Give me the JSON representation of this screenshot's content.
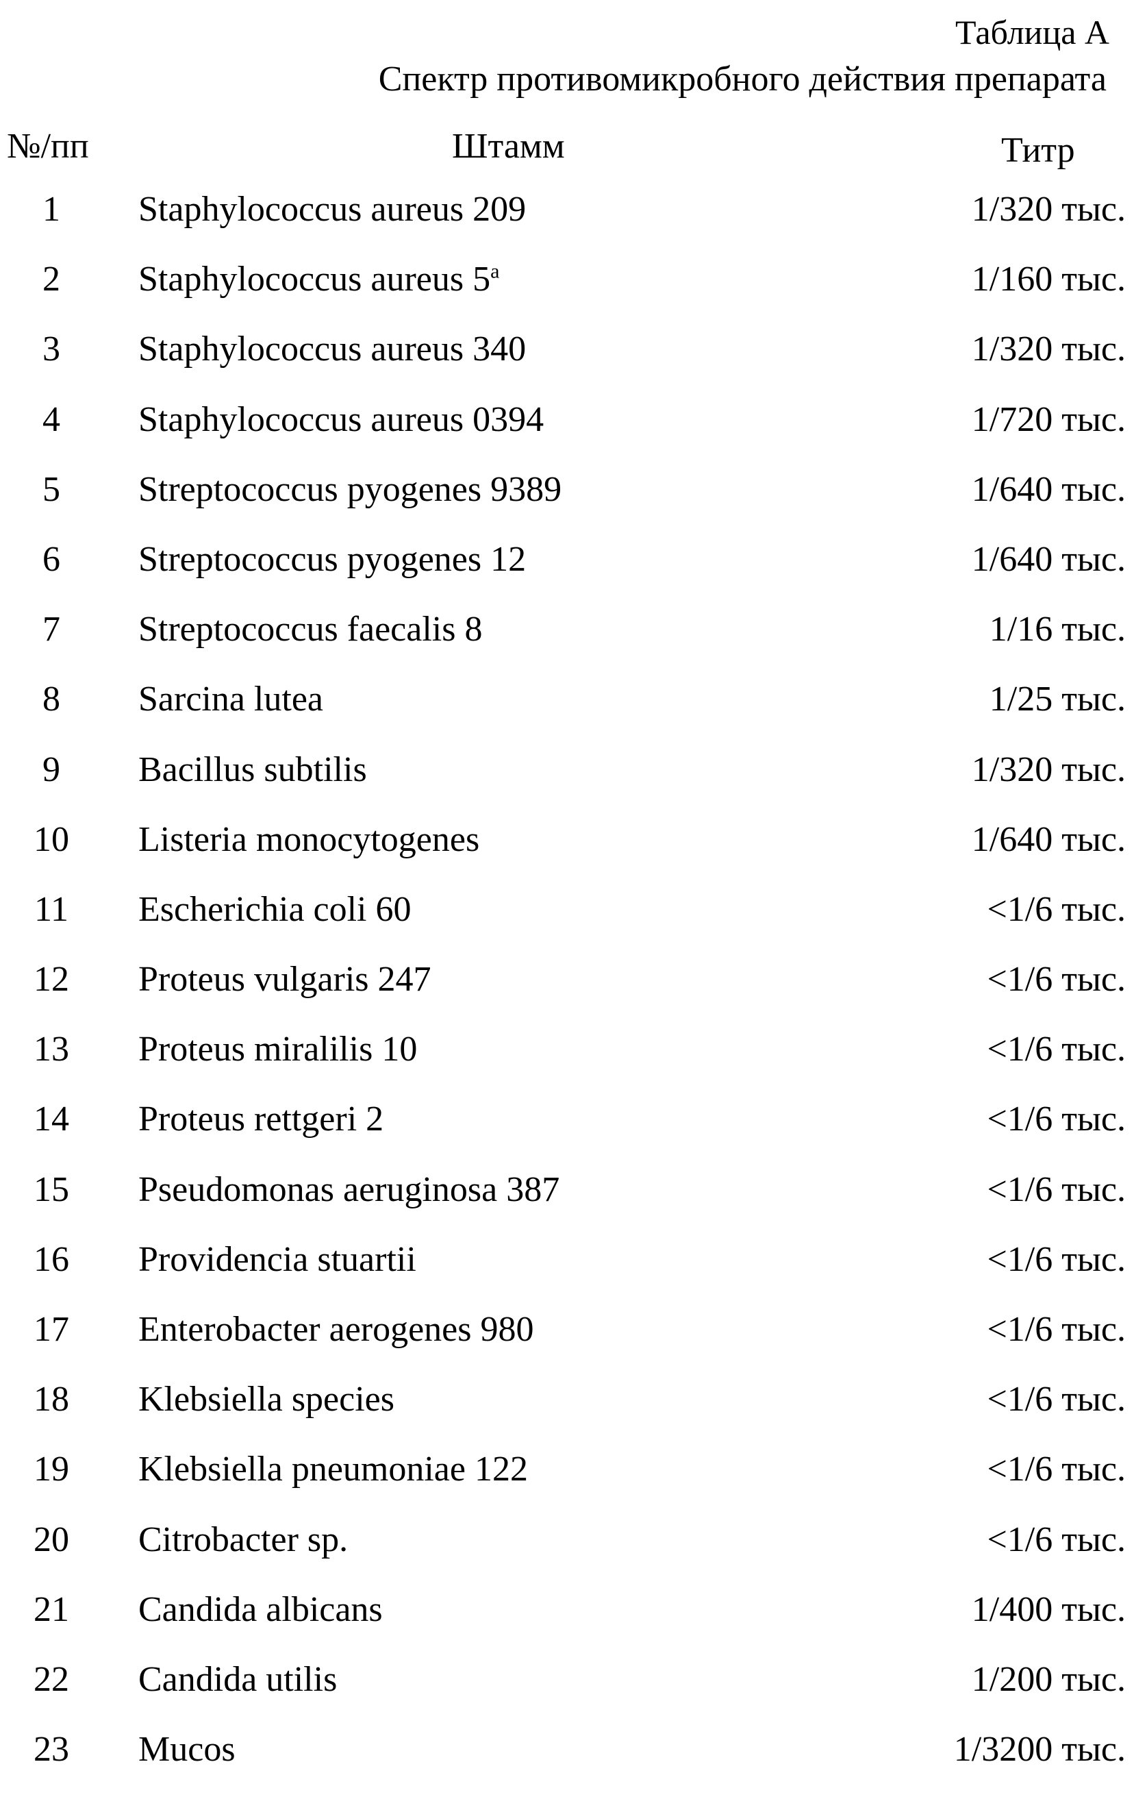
{
  "caption": "Таблица А",
  "title": "Спектр противомикробного действия препарата",
  "headers": {
    "num": "№/пп",
    "strain": "Штамм",
    "titer": "Титр"
  },
  "rows": [
    {
      "num": "1",
      "strain": "Staphylococcus aureus 209",
      "titer": "1/320 тыс."
    },
    {
      "num": "2",
      "strain": "Staphylococcus aureus 5",
      "sup": "a",
      "titer": "1/160 тыс."
    },
    {
      "num": "3",
      "strain": "Staphylococcus aureus 340",
      "titer": "1/320 тыс."
    },
    {
      "num": "4",
      "strain": "Staphylococcus aureus 0394",
      "titer": "1/720 тыс."
    },
    {
      "num": "5",
      "strain": "Streptococcus pyogenes 9389",
      "titer": "1/640 тыс."
    },
    {
      "num": "6",
      "strain": "Streptococcus pyogenes 12",
      "titer": "1/640 тыс."
    },
    {
      "num": "7",
      "strain": "Streptococcus faecalis 8",
      "titer": "1/16 тыс."
    },
    {
      "num": "8",
      "strain": "Sarcina lutea",
      "titer": "1/25 тыс."
    },
    {
      "num": "9",
      "strain": "Bacillus subtilis",
      "titer": "1/320 тыс."
    },
    {
      "num": "10",
      "strain": "Listeria monocytogenes",
      "titer": "1/640 тыс."
    },
    {
      "num": "11",
      "strain": "Escherichia coli 60",
      "titer": "<1/6 тыс."
    },
    {
      "num": "12",
      "strain": "Proteus vulgaris 247",
      "titer": "<1/6 тыс."
    },
    {
      "num": "13",
      "strain": "Proteus miralilis 10",
      "titer": "<1/6 тыс."
    },
    {
      "num": "14",
      "strain": "Proteus rettgeri 2",
      "titer": "<1/6 тыс."
    },
    {
      "num": "15",
      "strain": "Pseudomonas aeruginosa 387",
      "titer": "<1/6 тыс."
    },
    {
      "num": "16",
      "strain": "Providencia stuartii",
      "titer": "<1/6 тыс."
    },
    {
      "num": "17",
      "strain": "Enterobacter aerogenes 980",
      "titer": "<1/6 тыс."
    },
    {
      "num": "18",
      "strain": "Klebsiella species",
      "titer": "<1/6 тыс."
    },
    {
      "num": "19",
      "strain": "Klebsiella pneumoniae 122",
      "titer": "<1/6 тыс."
    },
    {
      "num": "20",
      "strain": "Citrobacter sp.",
      "titer": "<1/6 тыс."
    },
    {
      "num": "21",
      "strain": "Candida albicans",
      "titer": "1/400 тыс."
    },
    {
      "num": "22",
      "strain": "Candida utilis",
      "titer": "1/200 тыс."
    },
    {
      "num": "23",
      "strain": "Mucos",
      "titer": "1/3200 тыс."
    }
  ]
}
